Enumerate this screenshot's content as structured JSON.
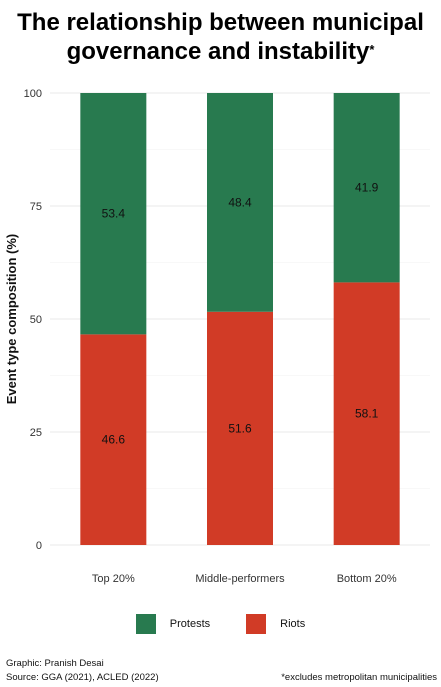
{
  "chart_data": {
    "type": "bar",
    "stacked": true,
    "title": "The relationship between municipal governance and instability",
    "title_mark": "*",
    "xlabel": "",
    "ylabel": "Event type composition (%)",
    "ylim": [
      0,
      100
    ],
    "yticks": [
      0,
      25,
      50,
      75,
      100
    ],
    "categories": [
      "Top 20%",
      "Middle-performers",
      "Bottom 20%"
    ],
    "series": [
      {
        "name": "Riots",
        "color": "#d13b26",
        "values": [
          46.6,
          51.6,
          58.1
        ]
      },
      {
        "name": "Protests",
        "color": "#287a4f",
        "values": [
          53.4,
          48.4,
          41.9
        ]
      }
    ],
    "legend": {
      "position": "bottom",
      "items": [
        {
          "name": "Protests",
          "color": "#287a4f"
        },
        {
          "name": "Riots",
          "color": "#d13b26"
        }
      ]
    },
    "grid": true
  },
  "footer": {
    "credit": "Graphic: Pranish Desai",
    "source": "Source: GGA (2021), ACLED (2022)",
    "note": "*excludes metropolitan municipalities"
  }
}
